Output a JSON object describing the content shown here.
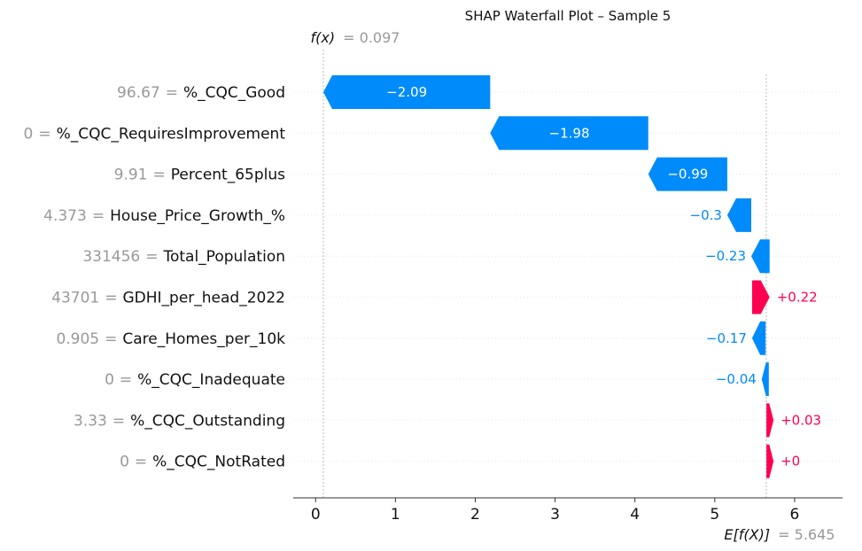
{
  "chart_data": {
    "type": "waterfall",
    "title": "SHAP Waterfall Plot – Sample 5",
    "fx_label": "f(x)",
    "fx_value": "= 0.097",
    "fx": 0.097,
    "base_label": "E[f(X)]",
    "base_value_text": "= 5.645",
    "base_value": 5.645,
    "xlim": [
      -0.28,
      6.6
    ],
    "x_ticks": [
      0,
      1,
      2,
      3,
      4,
      5,
      6
    ],
    "colors": {
      "positive": "#ff0051",
      "negative": "#008bfb"
    },
    "features": [
      {
        "value": "96.67",
        "name": "%_CQC_Good",
        "shap": -2.09,
        "label": "−2.09"
      },
      {
        "value": "0",
        "name": "%_CQC_RequiresImprovement",
        "shap": -1.98,
        "label": "−1.98"
      },
      {
        "value": "9.91",
        "name": "Percent_65plus",
        "shap": -0.99,
        "label": "−0.99"
      },
      {
        "value": "4.373",
        "name": "House_Price_Growth_%",
        "shap": -0.3,
        "label": "−0.3"
      },
      {
        "value": "331456",
        "name": "Total_Population",
        "shap": -0.23,
        "label": "−0.23"
      },
      {
        "value": "43701",
        "name": "GDHI_per_head_2022",
        "shap": 0.22,
        "label": "+0.22"
      },
      {
        "value": "0.905",
        "name": "Care_Homes_per_10k",
        "shap": -0.17,
        "label": "−0.17"
      },
      {
        "value": "0",
        "name": "%_CQC_Inadequate",
        "shap": -0.04,
        "label": "−0.04"
      },
      {
        "value": "3.33",
        "name": "%_CQC_Outstanding",
        "shap": 0.03,
        "label": "+0.03"
      },
      {
        "value": "0",
        "name": "%_CQC_NotRated",
        "shap": 0.0,
        "label": "+0"
      }
    ]
  }
}
